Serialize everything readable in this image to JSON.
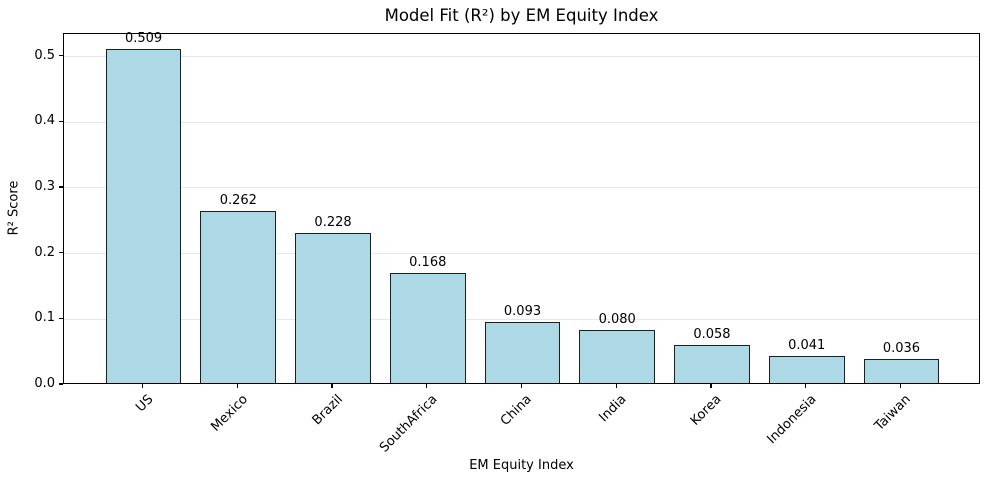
{
  "chart_data": {
    "type": "bar",
    "title": "Model Fit (R²) by EM Equity Index",
    "xlabel": "EM Equity Index",
    "ylabel": "R² Score",
    "categories": [
      "US",
      "Mexico",
      "Brazil",
      "SouthAfrica",
      "China",
      "India",
      "Korea",
      "Indonesia",
      "Taiwan"
    ],
    "values": [
      0.509,
      0.262,
      0.228,
      0.168,
      0.093,
      0.08,
      0.058,
      0.041,
      0.036
    ],
    "value_labels": [
      "0.509",
      "0.262",
      "0.228",
      "0.168",
      "0.093",
      "0.080",
      "0.058",
      "0.041",
      "0.036"
    ],
    "yticks": [
      0.0,
      0.1,
      0.2,
      0.3,
      0.4,
      0.5
    ],
    "ytick_labels": [
      "0.0",
      "0.1",
      "0.2",
      "0.3",
      "0.4",
      "0.5"
    ],
    "ylim": [
      0,
      0.5345
    ],
    "bar_width_units": 0.8,
    "grid": "horizontal",
    "legend": "none",
    "colors": {
      "bar_fill": "#ADD8E6",
      "bar_edge": "#1f1f1f",
      "grid_line": "#e7e7e7",
      "axis": "#000000",
      "text": "#000000",
      "background": "#ffffff"
    }
  }
}
